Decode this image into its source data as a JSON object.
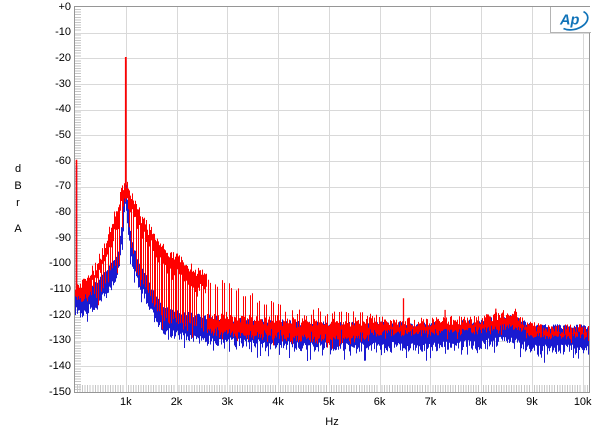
{
  "window": {
    "background": "#ffffff"
  },
  "logo": {
    "text": "Ap",
    "color": "#0f72b8"
  },
  "y_axis": {
    "unit_letters": [
      "d",
      "B",
      "r"
    ],
    "channel_label": "A",
    "tick_labels": [
      "+0",
      "-10",
      "-20",
      "-30",
      "-40",
      "-50",
      "-60",
      "-70",
      "-80",
      "-90",
      "-100",
      "-110",
      "-120",
      "-130",
      "-140",
      "-150"
    ],
    "tick_values": [
      0,
      -10,
      -20,
      -30,
      -40,
      -50,
      -60,
      -70,
      -80,
      -90,
      -100,
      -110,
      -120,
      -130,
      -140,
      -150
    ]
  },
  "x_axis": {
    "label": "Hz",
    "tick_labels": [
      "1k",
      "2k",
      "3k",
      "4k",
      "5k",
      "6k",
      "7k",
      "8k",
      "9k",
      "10k"
    ],
    "tick_values": [
      1000,
      2000,
      3000,
      4000,
      5000,
      6000,
      7000,
      8000,
      9000,
      10000
    ]
  },
  "chart_data": {
    "type": "line",
    "title": "",
    "xlabel": "Hz",
    "ylabel": "dBr",
    "x_range_hz": [
      0,
      10125
    ],
    "y_range_db": [
      -150,
      0
    ],
    "grid": true,
    "x_minor_tick_step_hz": 50,
    "y_minor_tick_step_db": 1,
    "grid_color": "#d9d9d9",
    "minor_tick_color": "#c6c6c6",
    "frame_color": "#969696",
    "series": [
      {
        "name": "trace-blue",
        "color": "#1a1ad0",
        "role": "noise-floor trace (mostly hidden below red)",
        "floor_offset_db": -2.5,
        "peak": {
          "hz": 1000,
          "db": -21
        },
        "dc_spike": {
          "hz": 30,
          "db": -62
        },
        "spurs": [
          [
            8290,
            -120
          ]
        ]
      },
      {
        "name": "trace-red",
        "color": "#ff0000",
        "role": "spectrum trace, 1 kHz tone with harmonic/sideband comb",
        "peak": {
          "hz": 1000,
          "db": -19.5
        },
        "dc_spike": {
          "hz": 30,
          "db": -59.5
        },
        "comb": {
          "start_hz": 180,
          "end_hz": 5800,
          "spacing_hz": 46
        },
        "spurs": [
          [
            6470,
            -113.5
          ],
          [
            7130,
            -121.5
          ],
          [
            7290,
            -118
          ],
          [
            7460,
            -122
          ],
          [
            8100,
            -121
          ],
          [
            8290,
            -117.5
          ]
        ],
        "top_envelope": [
          [
            0,
            -110
          ],
          [
            100,
            -108
          ],
          [
            200,
            -107
          ],
          [
            300,
            -105
          ],
          [
            400,
            -102
          ],
          [
            500,
            -98
          ],
          [
            600,
            -93
          ],
          [
            700,
            -87
          ],
          [
            800,
            -81
          ],
          [
            880,
            -76
          ],
          [
            940,
            -71
          ],
          [
            1000,
            -70
          ],
          [
            1060,
            -72
          ],
          [
            1150,
            -76
          ],
          [
            1250,
            -80
          ],
          [
            1350,
            -84
          ],
          [
            1450,
            -87
          ],
          [
            1600,
            -91
          ],
          [
            1800,
            -95
          ],
          [
            2000,
            -98
          ],
          [
            2300,
            -102
          ],
          [
            2600,
            -105
          ],
          [
            3000,
            -109
          ],
          [
            3400,
            -112
          ],
          [
            3800,
            -115
          ],
          [
            4200,
            -117
          ],
          [
            4600,
            -119
          ],
          [
            5000,
            -119
          ],
          [
            5400,
            -120
          ],
          [
            5800,
            -121
          ],
          [
            6200,
            -123
          ],
          [
            6800,
            -123
          ],
          [
            7400,
            -122
          ],
          [
            8000,
            -122
          ],
          [
            8400,
            -120
          ],
          [
            8650,
            -119
          ],
          [
            8900,
            -124
          ],
          [
            9300,
            -126
          ],
          [
            10125,
            -125
          ]
        ],
        "floor_envelope": [
          [
            0,
            -113
          ],
          [
            150,
            -114
          ],
          [
            300,
            -112
          ],
          [
            450,
            -110
          ],
          [
            600,
            -107
          ],
          [
            750,
            -102
          ],
          [
            850,
            -99
          ],
          [
            920,
            -88
          ],
          [
            960,
            -79
          ],
          [
            1000,
            -70
          ],
          [
            1040,
            -79
          ],
          [
            1100,
            -92
          ],
          [
            1200,
            -100
          ],
          [
            1300,
            -104
          ],
          [
            1400,
            -108
          ],
          [
            1500,
            -113
          ],
          [
            1600,
            -117
          ],
          [
            1800,
            -121
          ],
          [
            2000,
            -122
          ],
          [
            2500,
            -124
          ],
          [
            3000,
            -125
          ],
          [
            3500,
            -126
          ],
          [
            4000,
            -126
          ],
          [
            4500,
            -127
          ],
          [
            5000,
            -127
          ],
          [
            6000,
            -127
          ],
          [
            7000,
            -127
          ],
          [
            8000,
            -126
          ],
          [
            8600,
            -124
          ],
          [
            9000,
            -128
          ],
          [
            10125,
            -128
          ]
        ]
      }
    ]
  }
}
